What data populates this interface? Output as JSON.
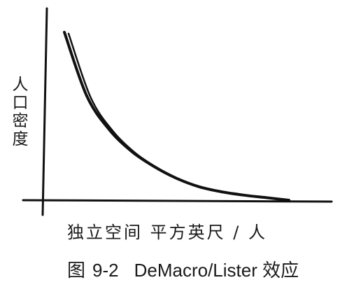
{
  "chart_data": {
    "type": "line",
    "ylabel": "人口密度",
    "xlabel": "独立空间 平方英尺 / 人",
    "series": [
      {
        "values": [
          1.0,
          0.62,
          0.42,
          0.29,
          0.2,
          0.13,
          0.08,
          0.05,
          0.03,
          0.015,
          0.0
        ]
      }
    ],
    "x": [
      0.0,
      0.1,
      0.2,
      0.3,
      0.4,
      0.5,
      0.6,
      0.7,
      0.8,
      0.9,
      1.0
    ],
    "grid": false,
    "legend": "none"
  },
  "caption": {
    "figure_label": "图",
    "figure_number": "9-2",
    "title": "DeMacro/Lister 效应"
  },
  "colors": {
    "ink": "#111111",
    "background": "#ffffff"
  }
}
